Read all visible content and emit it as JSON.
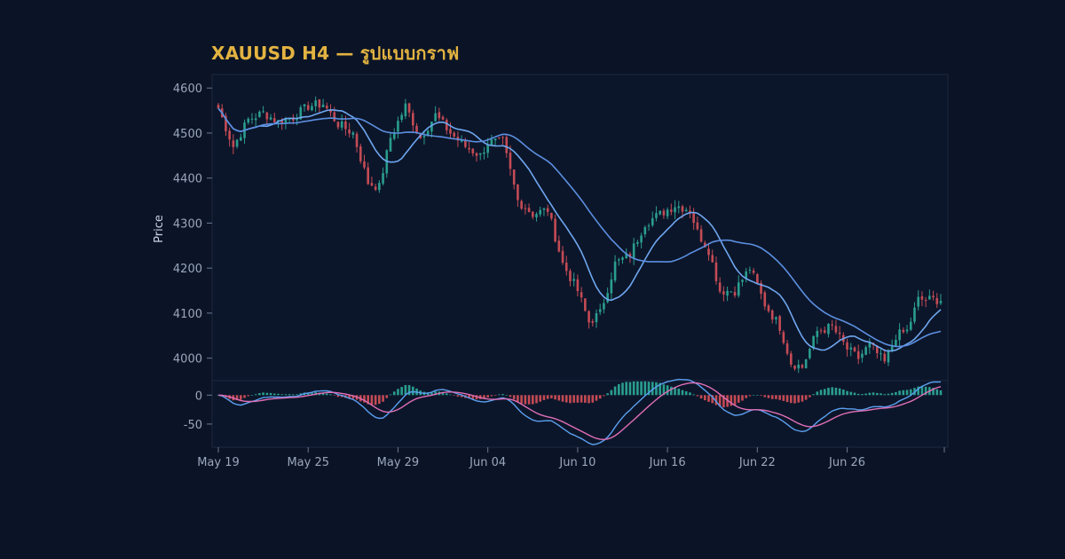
{
  "title": "XAUUSD H4 — รูปแบบกราฟ",
  "colors": {
    "background": "#0b1426",
    "title": "#e3b341",
    "bull": "#2a9d8f",
    "bear": "#c44b55",
    "ma_fast": "#6ea6ef",
    "ma_slow": "#5b8fe0",
    "macd": "#5ba0f0",
    "signal": "#e06fb6"
  },
  "chart_data": {
    "type": "candlestick",
    "ylabel": "Price",
    "price_ylim": [
      3950,
      4630
    ],
    "price_ticks": [
      4000,
      4100,
      4200,
      4300,
      4400,
      4500,
      4600
    ],
    "macd_ylim": [
      -90,
      25
    ],
    "macd_ticks": [
      0,
      -50
    ],
    "x_ticks": [
      "May 19",
      "May 25",
      "May 29",
      "Jun 04",
      "Jun 10",
      "Jun 16",
      "Jun 22",
      "Jun 26"
    ],
    "x_tick_positions": [
      0,
      24,
      48,
      72,
      96,
      120,
      144,
      168
    ],
    "n_bars": 194,
    "anchors": [
      [
        0,
        4555
      ],
      [
        4,
        4470
      ],
      [
        8,
        4530
      ],
      [
        12,
        4545
      ],
      [
        16,
        4525
      ],
      [
        20,
        4535
      ],
      [
        24,
        4560
      ],
      [
        28,
        4565
      ],
      [
        32,
        4520
      ],
      [
        36,
        4500
      ],
      [
        40,
        4390
      ],
      [
        43,
        4380
      ],
      [
        46,
        4490
      ],
      [
        50,
        4560
      ],
      [
        54,
        4490
      ],
      [
        58,
        4540
      ],
      [
        62,
        4500
      ],
      [
        66,
        4470
      ],
      [
        70,
        4450
      ],
      [
        72,
        4480
      ],
      [
        76,
        4480
      ],
      [
        80,
        4350
      ],
      [
        84,
        4320
      ],
      [
        88,
        4330
      ],
      [
        92,
        4210
      ],
      [
        96,
        4150
      ],
      [
        99,
        4080
      ],
      [
        102,
        4100
      ],
      [
        106,
        4210
      ],
      [
        110,
        4230
      ],
      [
        114,
        4300
      ],
      [
        118,
        4320
      ],
      [
        122,
        4340
      ],
      [
        126,
        4330
      ],
      [
        128,
        4280
      ],
      [
        131,
        4240
      ],
      [
        134,
        4150
      ],
      [
        138,
        4150
      ],
      [
        142,
        4200
      ],
      [
        146,
        4120
      ],
      [
        150,
        4070
      ],
      [
        153,
        3990
      ],
      [
        156,
        3980
      ],
      [
        160,
        4060
      ],
      [
        164,
        4070
      ],
      [
        168,
        4020
      ],
      [
        171,
        4000
      ],
      [
        174,
        4030
      ],
      [
        178,
        3990
      ],
      [
        181,
        4050
      ],
      [
        184,
        4060
      ],
      [
        187,
        4130
      ]
    ],
    "series": [
      {
        "name": "",
        "kind": "sma",
        "period": 12
      },
      {
        "name": "",
        "kind": "sma",
        "period": 32
      }
    ],
    "macd": {
      "fast": 12,
      "slow": 26,
      "signal": 9
    }
  }
}
